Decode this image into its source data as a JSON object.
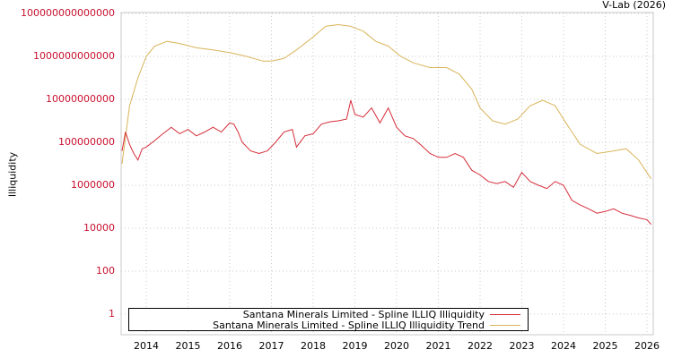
{
  "header": {
    "credit": "V-Lab (2026)"
  },
  "colors": {
    "illiq": "#d62d3a",
    "trend": "#d9b55a",
    "ytick": "#c8102e",
    "grid": "#c8c8c8",
    "frame": "#c8c8c8"
  },
  "chart_data": {
    "type": "line",
    "title": "",
    "xlabel": "",
    "ylabel": "Illiquidity",
    "yscale": "log",
    "ylim": [
      0.3,
      100000000000000.0
    ],
    "xlim": [
      2013.4,
      2026.1
    ],
    "grid": true,
    "legend_position": "bottom-inside",
    "x_ticks": [
      "2014",
      "2015",
      "2016",
      "2017",
      "2018",
      "2019",
      "2020",
      "2021",
      "2022",
      "2023",
      "2024",
      "2025",
      "2026"
    ],
    "y_ticks": [
      "1",
      "100",
      "10000",
      "1000000",
      "100000000",
      "10000000000",
      "1000000000000",
      "100000000000000"
    ],
    "series": [
      {
        "name": "Santana Minerals Limited - Spline ILLIQ Illiquidity",
        "color": "#d62d3a",
        "x": [
          2013.42,
          2013.5,
          2013.6,
          2013.7,
          2013.8,
          2013.9,
          2014.0,
          2014.2,
          2014.4,
          2014.6,
          2014.8,
          2015.0,
          2015.2,
          2015.4,
          2015.6,
          2015.8,
          2016.0,
          2016.1,
          2016.2,
          2016.3,
          2016.5,
          2016.7,
          2016.9,
          2017.1,
          2017.3,
          2017.5,
          2017.6,
          2017.8,
          2018.0,
          2018.2,
          2018.4,
          2018.6,
          2018.8,
          2018.9,
          2019.0,
          2019.2,
          2019.4,
          2019.6,
          2019.8,
          2020.0,
          2020.2,
          2020.4,
          2020.6,
          2020.8,
          2021.0,
          2021.2,
          2021.4,
          2021.6,
          2021.8,
          2022.0,
          2022.2,
          2022.4,
          2022.6,
          2022.8,
          2023.0,
          2023.2,
          2023.4,
          2023.6,
          2023.8,
          2024.0,
          2024.2,
          2024.4,
          2024.6,
          2024.8,
          2025.0,
          2025.2,
          2025.4,
          2025.6,
          2025.8,
          2026.0,
          2026.1
        ],
        "y": [
          40000000.0,
          300000000.0,
          80000000.0,
          30000000.0,
          15000000.0,
          50000000.0,
          60000000.0,
          120000000.0,
          250000000.0,
          500000000.0,
          250000000.0,
          400000000.0,
          200000000.0,
          300000000.0,
          500000000.0,
          300000000.0,
          800000000.0,
          700000000.0,
          300000000.0,
          100000000.0,
          40000000.0,
          30000000.0,
          40000000.0,
          100000000.0,
          300000000.0,
          400000000.0,
          60000000.0,
          200000000.0,
          250000000.0,
          700000000.0,
          900000000.0,
          1000000000.0,
          1200000000.0,
          9000000000.0,
          2000000000.0,
          1500000000.0,
          4000000000.0,
          800000000.0,
          4000000000.0,
          500000000.0,
          200000000.0,
          150000000.0,
          70000000.0,
          30000000.0,
          20000000.0,
          20000000.0,
          30000000.0,
          20000000.0,
          5000000.0,
          3000000.0,
          1500000.0,
          1200000.0,
          1500000.0,
          800000.0,
          4000000.0,
          1500000.0,
          1000000.0,
          700000.0,
          1500000.0,
          1000000.0,
          200000.0,
          120000.0,
          80000.0,
          50000.0,
          60000.0,
          80000.0,
          50000.0,
          40000.0,
          30000.0,
          25000.0,
          15000.0
        ],
        "values_note": "approximate, read from log axis"
      },
      {
        "name": "Santana Minerals Limited - Spline ILLIQ Illiquidity Trend",
        "color": "#d9b55a",
        "x": [
          2013.42,
          2013.6,
          2013.8,
          2014.0,
          2014.2,
          2014.5,
          2014.8,
          2015.2,
          2015.6,
          2016.0,
          2016.4,
          2016.8,
          2017.0,
          2017.3,
          2017.6,
          2018.0,
          2018.3,
          2018.6,
          2018.9,
          2019.2,
          2019.5,
          2019.8,
          2020.1,
          2020.4,
          2020.8,
          2021.2,
          2021.5,
          2021.8,
          2022.0,
          2022.3,
          2022.6,
          2022.9,
          2023.2,
          2023.5,
          2023.8,
          2024.1,
          2024.4,
          2024.8,
          2025.2,
          2025.5,
          2025.8,
          2026.1
        ],
        "y": [
          10000000.0,
          5000000000.0,
          100000000000.0,
          1000000000000.0,
          3000000000000.0,
          5000000000000.0,
          4000000000000.0,
          2500000000000.0,
          2000000000000.0,
          1500000000000.0,
          1000000000000.0,
          600000000000.0,
          600000000000.0,
          800000000000.0,
          2000000000000.0,
          8000000000000.0,
          25000000000000.0,
          30000000000000.0,
          25000000000000.0,
          15000000000000.0,
          5000000000000.0,
          3000000000000.0,
          1000000000000.0,
          500000000000.0,
          300000000000.0,
          300000000000.0,
          150000000000.0,
          30000000000.0,
          4000000000.0,
          1000000000.0,
          700000000.0,
          1200000000.0,
          5000000000.0,
          9000000000.0,
          5000000000.0,
          600000000.0,
          80000000.0,
          30000000.0,
          40000000.0,
          50000000.0,
          15000000.0,
          2000000.0
        ],
        "values_note": "approximate, read from log axis"
      }
    ]
  },
  "legend": {
    "items": [
      {
        "label": "Santana Minerals Limited - Spline ILLIQ Illiquidity",
        "color": "#d62d3a"
      },
      {
        "label": "Santana Minerals Limited - Spline ILLIQ Illiquidity Trend",
        "color": "#d9b55a"
      }
    ]
  }
}
